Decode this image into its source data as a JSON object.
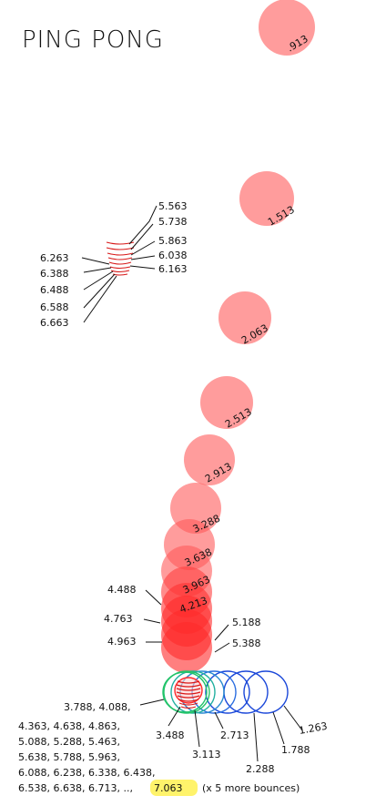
{
  "title": "PING PONG",
  "colors": {
    "ball": "#ff2a2a",
    "trace_blue": "#1a47d9",
    "trace_green": "#22c36b",
    "highlight": "#fff36b",
    "ink": "#111111"
  },
  "ball_labels": [
    ".913",
    "1.513",
    "2.063",
    "2.513",
    "2.913",
    "3.288",
    "3.638",
    "3.963",
    "4.213"
  ],
  "upper_right_times": [
    "5.563",
    "5.738",
    "5.863",
    "6.038",
    "6.163"
  ],
  "upper_left_times": [
    "6.263",
    "6.388",
    "6.488",
    "6.588",
    "6.663"
  ],
  "left_times": [
    "4.488",
    "4.763",
    "4.963"
  ],
  "right_times": [
    "5.188",
    "5.388"
  ],
  "bottom_labels": [
    "3.488",
    "3.113",
    "2.713",
    "2.288",
    "1.788",
    "1.263"
  ],
  "footer_lines": [
    "3.788, 4.088,",
    "4.363, 4.638, 4.863,",
    "5.088, 5.288, 5.463,",
    "5.638, 5.788, 5.963,",
    "6.088, 6.238, 6.338, 6.438,",
    "6.538, 6.638, 6.713, ..,"
  ],
  "final_time": "7.063",
  "more_bounces": "(x 5 more bounces)"
}
